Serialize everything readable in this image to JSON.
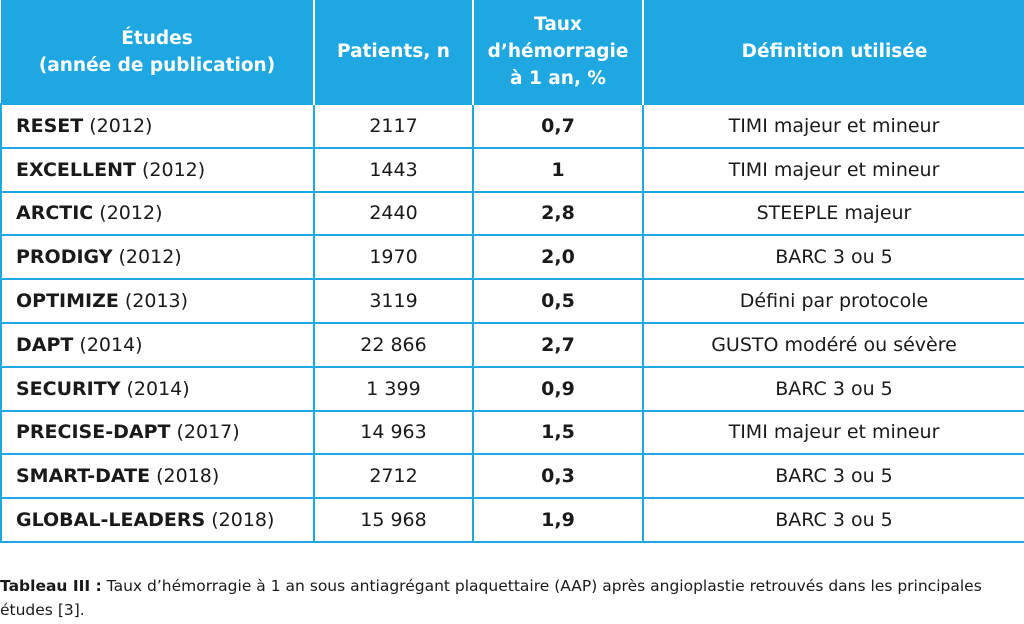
{
  "header": {
    "studies_line1": "Études",
    "studies_line2": "(année de publication)",
    "patients": "Patients, n",
    "rate_line1": "Taux",
    "rate_line2": "d’hémorragie",
    "rate_line3": "à 1 an, %",
    "definition": "Définition utilisée"
  },
  "rows": [
    {
      "name": "RESET",
      "year": " (2012)",
      "patients": "2117",
      "rate": "0,7",
      "definition": "TIMI majeur et mineur"
    },
    {
      "name": "EXCELLENT",
      "year": " (2012)",
      "patients": "1443",
      "rate": "1",
      "definition": "TIMI majeur et mineur"
    },
    {
      "name": "ARCTIC",
      "year": " (2012)",
      "patients": "2440",
      "rate": "2,8",
      "definition": "STEEPLE majeur"
    },
    {
      "name": "PRODIGY",
      "year": " (2012)",
      "patients": "1970",
      "rate": "2,0",
      "definition": "BARC 3 ou 5"
    },
    {
      "name": "OPTIMIZE",
      "year": " (2013)",
      "patients": "3119",
      "rate": "0,5",
      "definition": "Défini par protocole"
    },
    {
      "name": "DAPT",
      "year": " (2014)",
      "patients": "22 866",
      "rate": "2,7",
      "definition": "GUSTO modéré ou sévère"
    },
    {
      "name": "SECURITY",
      "year": " (2014)",
      "patients": "1 399",
      "rate": "0,9",
      "definition": "BARC 3 ou 5"
    },
    {
      "name": "PRECISE-DAPT",
      "year": " (2017)",
      "patients": "14 963",
      "rate": "1,5",
      "definition": "TIMI majeur et mineur"
    },
    {
      "name": "SMART-DATE",
      "year": " (2018)",
      "patients": "2712",
      "rate": "0,3",
      "definition": "BARC 3 ou 5"
    },
    {
      "name": "GLOBAL-LEADERS",
      "year": " (2018)",
      "patients": "15 968",
      "rate": "1,9",
      "definition": "BARC 3 ou 5"
    }
  ],
  "caption": {
    "label": "Tableau III :",
    "text": " Taux d’hémorragie à 1 an sous antiagrégant plaquettaire (AAP) après angioplastie retrouvés dans les principales études [3]."
  },
  "colors": {
    "header_bg": "#1ea7e1",
    "border": "#1ea7e1",
    "header_text": "#ffffff"
  }
}
